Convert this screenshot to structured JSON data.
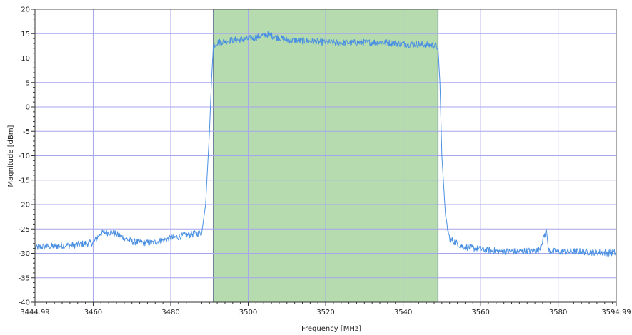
{
  "chart_data": {
    "type": "line",
    "xlabel": "Frequency [MHz]",
    "ylabel": "Magnitude [dBm]",
    "xlim": [
      3444.99,
      3594.99
    ],
    "ylim": [
      -40,
      20
    ],
    "x_ticks": [
      3444.99,
      3460,
      3480,
      3500,
      3520,
      3540,
      3560,
      3580,
      3594.99
    ],
    "x_tick_labels": [
      "3444.99",
      "3460",
      "3480",
      "3500",
      "3520",
      "3540",
      "3560",
      "3580",
      "3594.99"
    ],
    "y_ticks": [
      20,
      15,
      10,
      5,
      0,
      -5,
      -10,
      -15,
      -20,
      -25,
      -30,
      -35,
      -40
    ],
    "y_tick_labels": [
      "20",
      "15",
      "10",
      "5",
      "0",
      "-5",
      "-10",
      "-15",
      "-20",
      "-25",
      "-30",
      "-35",
      "-40"
    ],
    "grid": true,
    "highlight_band": {
      "x_start": 3491,
      "x_end": 3549,
      "color": "#a9d5a0"
    },
    "series": [
      {
        "color": "#4a90e2",
        "x": [
          3445,
          3450,
          3455,
          3460,
          3462,
          3465,
          3470,
          3475,
          3480,
          3484,
          3488,
          3489,
          3490,
          3490.5,
          3491,
          3492,
          3495,
          3500,
          3505,
          3510,
          3515,
          3520,
          3525,
          3530,
          3535,
          3540,
          3545,
          3548,
          3549,
          3549.5,
          3550,
          3551,
          3552,
          3555,
          3560,
          3565,
          3570,
          3575,
          3577,
          3577.5,
          3578,
          3580,
          3585,
          3590,
          3594.99
        ],
        "y": [
          -28.8,
          -28.5,
          -28.3,
          -27.8,
          -25.8,
          -25.7,
          -27.6,
          -27.9,
          -26.9,
          -26.3,
          -25.8,
          -20,
          -5,
          5,
          12.5,
          13.2,
          13.6,
          13.9,
          14.8,
          13.7,
          13.5,
          13.2,
          13.1,
          13.2,
          13.2,
          12.9,
          12.8,
          12.6,
          12.2,
          5,
          -10,
          -23,
          -27,
          -28.5,
          -29.2,
          -29.6,
          -29.6,
          -29.4,
          -25.2,
          -29.3,
          -29.5,
          -29.7,
          -29.6,
          -29.8,
          -29.9
        ]
      }
    ]
  }
}
